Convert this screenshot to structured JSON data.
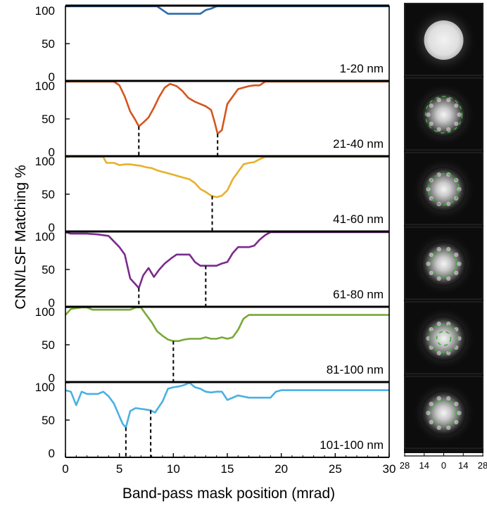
{
  "chart_data": {
    "type": "line",
    "ylabel": "CNN/LSF Matching %",
    "xlabel": "Band-pass mask position (mrad)",
    "xlim": [
      0,
      30
    ],
    "ylim": [
      0,
      100
    ],
    "x_ticks": [
      0,
      5,
      10,
      15,
      20,
      25,
      30
    ],
    "y_ticks": [
      0,
      50,
      100
    ],
    "grid": false,
    "colors": {
      "blue": "#2b6cab",
      "orange": "#d4561f",
      "yellow": "#e8b02c",
      "purple": "#7b2a8f",
      "green": "#78a83a",
      "cyan": "#4ab0e3"
    },
    "panels": [
      {
        "label": "1-20 nm",
        "color": "#2b6cab",
        "x": [
          0,
          8.5,
          9,
          9.5,
          10,
          10.5,
          11,
          11.5,
          12,
          12.5,
          13,
          13.5,
          14,
          30
        ],
        "y": [
          100,
          100,
          95,
          90,
          90,
          90,
          90,
          90,
          90,
          90,
          95,
          97,
          100,
          100
        ],
        "markers": []
      },
      {
        "label": "21-40 nm",
        "color": "#d4561f",
        "x": [
          0,
          4.5,
          5,
          5.5,
          6,
          6.5,
          6.8,
          7.2,
          7.7,
          8.2,
          8.7,
          9.2,
          9.7,
          10.3,
          10.8,
          11.4,
          12,
          12.5,
          13,
          13.5,
          13.8,
          14.1,
          14.5,
          15,
          15.5,
          16,
          16.5,
          17,
          17.5,
          18,
          18.5,
          30
        ],
        "y": [
          100,
          100,
          95,
          80,
          60,
          48,
          40,
          45,
          52,
          65,
          80,
          92,
          97,
          94,
          88,
          78,
          73,
          70,
          67,
          62,
          47,
          30,
          35,
          70,
          80,
          90,
          92,
          94,
          95,
          95,
          100,
          100
        ],
        "markers": [
          6.8,
          14.1
        ]
      },
      {
        "label": "41-60 nm",
        "color": "#e8b02c",
        "x": [
          0,
          3.5,
          3.8,
          4.5,
          5,
          5.5,
          6,
          6.5,
          7,
          7.5,
          8,
          8.5,
          9,
          9.5,
          10,
          10.5,
          11,
          11.5,
          12,
          12.5,
          13,
          13.5,
          14,
          14.5,
          15,
          15.5,
          16,
          16.5,
          17,
          17.5,
          18,
          18.5,
          30
        ],
        "y": [
          100,
          100,
          92,
          92,
          89,
          90,
          90,
          89,
          88,
          86,
          85,
          82,
          80,
          78,
          76,
          74,
          72,
          70,
          65,
          57,
          53,
          48,
          46,
          48,
          55,
          70,
          80,
          90,
          92,
          93,
          97,
          100,
          100
        ],
        "markers": [
          13.6
        ]
      },
      {
        "label": "61-80 nm",
        "color": "#7b2a8f",
        "x": [
          0,
          0.5,
          2,
          3,
          4,
          5,
          5.5,
          6,
          6.5,
          6.8,
          7.2,
          7.7,
          8.2,
          8.7,
          9.2,
          9.8,
          10.3,
          11,
          11.5,
          12,
          12.5,
          13,
          13.5,
          14,
          14.5,
          15,
          15.5,
          16,
          16.5,
          17,
          17.5,
          18,
          18.5,
          19,
          30
        ],
        "y": [
          100,
          98,
          98,
          97,
          95,
          80,
          70,
          38,
          30,
          25,
          42,
          52,
          40,
          50,
          58,
          65,
          70,
          70,
          70,
          60,
          55,
          55,
          55,
          55,
          58,
          60,
          72,
          80,
          80,
          80,
          82,
          90,
          96,
          100,
          100
        ],
        "markers": [
          6.8,
          13.0
        ]
      },
      {
        "label": "81-100 nm",
        "color": "#78a83a",
        "x": [
          0,
          0.5,
          1.5,
          2,
          2.5,
          3,
          4,
          5,
          6,
          6.5,
          7,
          7.5,
          8,
          8.5,
          9,
          9.5,
          10,
          10.5,
          11,
          11.5,
          12,
          12.5,
          13,
          13.5,
          14,
          14.5,
          15,
          15.5,
          16,
          16.5,
          17,
          30
        ],
        "y": [
          90,
          98,
          100,
          100,
          97,
          97,
          97,
          97,
          97,
          100,
          100,
          90,
          80,
          68,
          62,
          57,
          55,
          55,
          57,
          58,
          58,
          58,
          60,
          58,
          58,
          60,
          58,
          60,
          70,
          85,
          90,
          90
        ],
        "markers": [
          10.0
        ]
      },
      {
        "label": "101-100 nm",
        "color": "#4ab0e3",
        "x": [
          0,
          0.5,
          1,
          1.5,
          2,
          2.5,
          3,
          3.5,
          4,
          4.5,
          5,
          5.3,
          5.6,
          6,
          6.5,
          7,
          7.5,
          7.9,
          8.3,
          9,
          9.5,
          10,
          10.5,
          11,
          11.5,
          12,
          12.5,
          13,
          13.5,
          14,
          14.5,
          15,
          16,
          17,
          18,
          19,
          19.5,
          20,
          30
        ],
        "y": [
          90,
          88,
          70,
          88,
          85,
          85,
          85,
          88,
          82,
          72,
          55,
          45,
          40,
          62,
          66,
          65,
          64,
          63,
          60,
          75,
          92,
          94,
          95,
          97,
          100,
          94,
          92,
          88,
          87,
          88,
          88,
          77,
          83,
          80,
          80,
          80,
          88,
          90,
          90
        ],
        "markers": [
          5.6,
          7.9
        ]
      }
    ]
  },
  "thumbnail_axis": {
    "ticks": [
      "28",
      "14",
      "0",
      "14",
      "28"
    ]
  }
}
